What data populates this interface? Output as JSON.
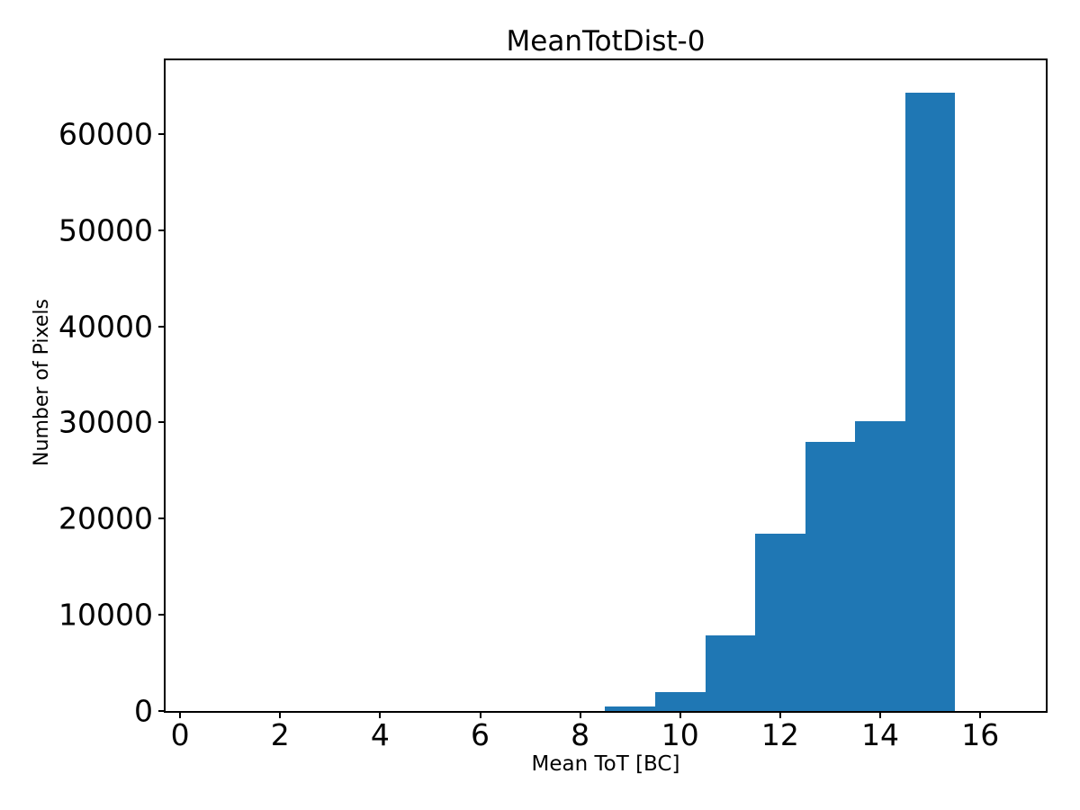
{
  "figure": {
    "background": "#ffffff",
    "text_color": "#000000"
  },
  "chart_data": {
    "type": "bar",
    "title": "MeanTotDist-0",
    "xlabel": "Mean ToT [BC]",
    "ylabel": "Number of Pixels",
    "bar_color": "#1f77b4",
    "bin_edges": [
      8.5,
      9.5,
      10.5,
      11.5,
      12.5,
      13.5,
      14.5,
      15.5
    ],
    "values": [
      430,
      2000,
      7900,
      18400,
      28000,
      30100,
      64300
    ],
    "xlim": [
      -0.29,
      17.31
    ],
    "ylim": [
      0,
      67650
    ],
    "xticks": [
      0,
      2,
      4,
      6,
      8,
      10,
      12,
      14,
      16
    ],
    "yticks": [
      0,
      10000,
      20000,
      30000,
      40000,
      50000,
      60000
    ],
    "grid": false,
    "legend": null
  }
}
